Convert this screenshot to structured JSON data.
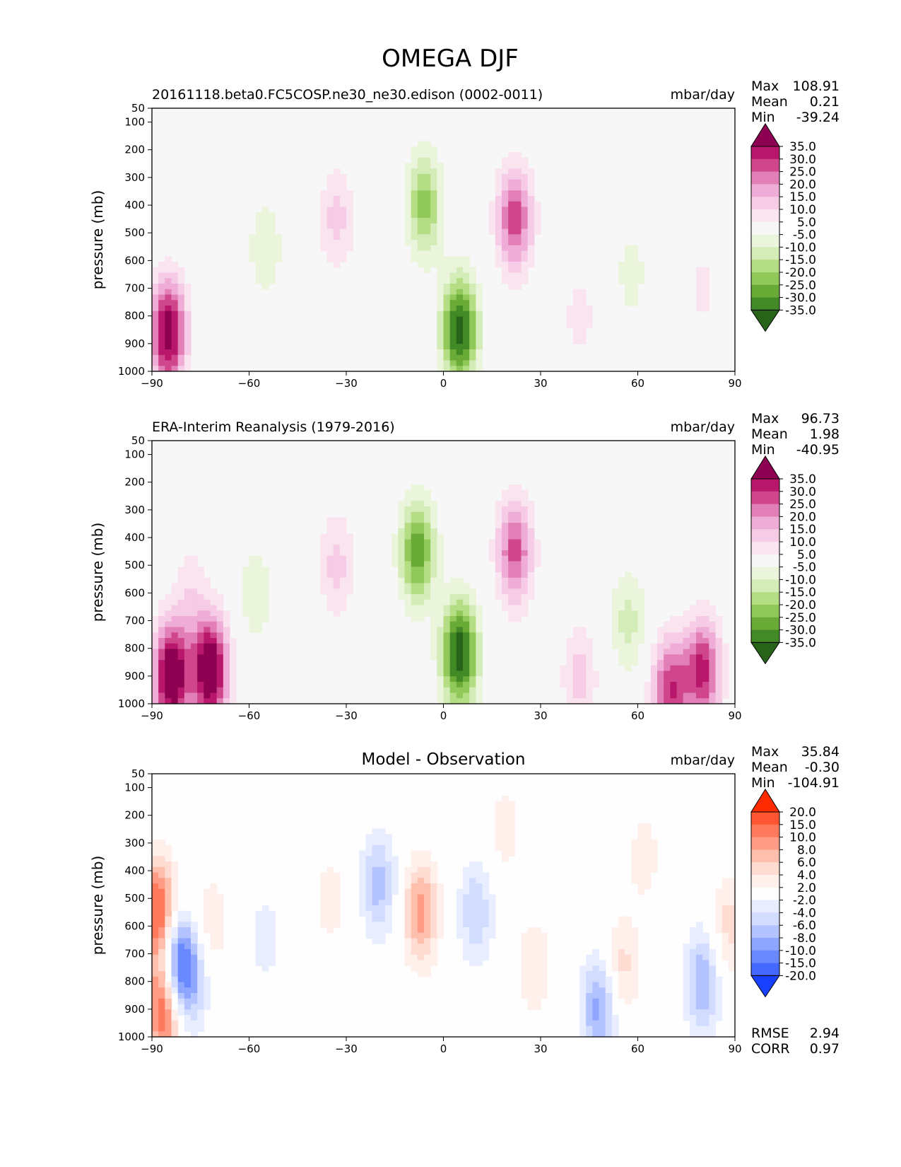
{
  "figure": {
    "title": "OMEGA DJF"
  },
  "chart_data": [
    {
      "type": "heatmap",
      "panel": "test",
      "title_left": "20161118.beta0.FC5COSP.ne30_ne30.edison (0002-0011)",
      "title_center": "",
      "units": "mbar/day",
      "ylabel": "pressure (mb)",
      "xlabel": "",
      "xlim": [
        -90,
        90
      ],
      "ylim": [
        1000,
        50
      ],
      "xticks": [
        "−90",
        "−60",
        "−30",
        "0",
        "30",
        "60",
        "90"
      ],
      "xtick_values": [
        -90,
        -60,
        -30,
        0,
        30,
        60,
        90
      ],
      "yticks": [
        "50",
        "100",
        "200",
        "300",
        "400",
        "500",
        "600",
        "700",
        "800",
        "900",
        "1000"
      ],
      "ytick_values": [
        50,
        100,
        200,
        300,
        400,
        500,
        600,
        700,
        800,
        900,
        1000
      ],
      "stats": [
        {
          "label": "Max",
          "value": "108.91"
        },
        {
          "label": "Mean",
          "value": "0.21"
        },
        {
          "label": "Min",
          "value": "-39.24"
        }
      ],
      "colorbar": {
        "labels": [
          "35.0",
          "30.0",
          "25.0",
          "20.0",
          "15.0",
          "10.0",
          "5.0",
          "-5.0",
          "-10.0",
          "-15.0",
          "-20.0",
          "-25.0",
          "-30.0",
          "-35.0"
        ],
        "colors": [
          "#8e0152",
          "#b8176b",
          "#d0468c",
          "#e27fb7",
          "#efacd6",
          "#f6cbe5",
          "#fae4ef",
          "#f7f7f7",
          "#ebf5dc",
          "#d4ecb7",
          "#b4dd84",
          "#90c95a",
          "#6aaa37",
          "#418a26",
          "#276419"
        ]
      },
      "field_features": [
        {
          "lat": -85,
          "p": 860,
          "value": 40
        },
        {
          "lat": -33,
          "p": 450,
          "value": 12
        },
        {
          "lat": -55,
          "p": 550,
          "value": -9
        },
        {
          "lat": -6,
          "p": 400,
          "value": -22
        },
        {
          "lat": 5,
          "p": 850,
          "value": -38
        },
        {
          "lat": 22,
          "p": 450,
          "value": 28
        },
        {
          "lat": 58,
          "p": 650,
          "value": -7
        },
        {
          "lat": 80,
          "p": 700,
          "value": 6
        },
        {
          "lat": 42,
          "p": 800,
          "value": 7
        }
      ]
    },
    {
      "type": "heatmap",
      "panel": "reference",
      "title_left": "ERA-Interim Reanalysis (1979-2016)",
      "title_center": "",
      "units": "mbar/day",
      "ylabel": "pressure (mb)",
      "xlabel": "",
      "xlim": [
        -90,
        90
      ],
      "ylim": [
        1000,
        50
      ],
      "xticks": [
        "−90",
        "−60",
        "−30",
        "0",
        "30",
        "60",
        "90"
      ],
      "xtick_values": [
        -90,
        -60,
        -30,
        0,
        30,
        60,
        90
      ],
      "yticks": [
        "50",
        "100",
        "200",
        "300",
        "400",
        "500",
        "600",
        "700",
        "800",
        "900",
        "1000"
      ],
      "ytick_values": [
        50,
        100,
        200,
        300,
        400,
        500,
        600,
        700,
        800,
        900,
        1000
      ],
      "stats": [
        {
          "label": "Max",
          "value": "96.73"
        },
        {
          "label": "Mean",
          "value": "1.98"
        },
        {
          "label": "Min",
          "value": "-40.95"
        }
      ],
      "colorbar": {
        "labels": [
          "35.0",
          "30.0",
          "25.0",
          "20.0",
          "15.0",
          "10.0",
          "5.0",
          "-5.0",
          "-10.0",
          "-15.0",
          "-20.0",
          "-25.0",
          "-30.0",
          "-35.0"
        ],
        "colors": [
          "#8e0152",
          "#b8176b",
          "#d0468c",
          "#e27fb7",
          "#efacd6",
          "#f6cbe5",
          "#fae4ef",
          "#f7f7f7",
          "#ebf5dc",
          "#d4ecb7",
          "#b4dd84",
          "#90c95a",
          "#6aaa37",
          "#418a26",
          "#276419"
        ]
      },
      "field_features": [
        {
          "lat": -84,
          "p": 900,
          "value": 45
        },
        {
          "lat": -72,
          "p": 880,
          "value": 45
        },
        {
          "lat": -78,
          "p": 600,
          "value": 8
        },
        {
          "lat": -33,
          "p": 500,
          "value": 12
        },
        {
          "lat": -58,
          "p": 600,
          "value": -9
        },
        {
          "lat": -8,
          "p": 450,
          "value": -28
        },
        {
          "lat": 5,
          "p": 820,
          "value": -40
        },
        {
          "lat": 22,
          "p": 450,
          "value": 27
        },
        {
          "lat": 57,
          "p": 700,
          "value": -12
        },
        {
          "lat": 70,
          "p": 950,
          "value": 30
        },
        {
          "lat": 80,
          "p": 880,
          "value": 32
        },
        {
          "lat": 42,
          "p": 900,
          "value": 12
        }
      ]
    },
    {
      "type": "heatmap",
      "panel": "difference",
      "title_left": "",
      "title_center": "Model - Observation",
      "units": "mbar/day",
      "ylabel": "pressure (mb)",
      "xlabel": "",
      "xlim": [
        -90,
        90
      ],
      "ylim": [
        1000,
        50
      ],
      "xticks": [
        "−90",
        "−60",
        "−30",
        "0",
        "30",
        "60",
        "90"
      ],
      "xtick_values": [
        -90,
        -60,
        -30,
        0,
        30,
        60,
        90
      ],
      "yticks": [
        "50",
        "100",
        "200",
        "300",
        "400",
        "500",
        "600",
        "700",
        "800",
        "900",
        "1000"
      ],
      "ytick_values": [
        50,
        100,
        200,
        300,
        400,
        500,
        600,
        700,
        800,
        900,
        1000
      ],
      "stats": [
        {
          "label": "Max",
          "value": "35.84"
        },
        {
          "label": "Mean",
          "value": "-0.30"
        },
        {
          "label": "Min",
          "value": "-104.91"
        }
      ],
      "extra_stats": [
        {
          "label": "RMSE",
          "value": "2.94"
        },
        {
          "label": "CORR",
          "value": "0.97"
        }
      ],
      "colorbar": {
        "labels": [
          "20.0",
          "15.0",
          "10.0",
          "8.0",
          "6.0",
          "4.0",
          "2.0",
          "-2.0",
          "-4.0",
          "-6.0",
          "-8.0",
          "-10.0",
          "-15.0",
          "-20.0"
        ],
        "colors": [
          "#ff2b00",
          "#ff5533",
          "#ff7a5c",
          "#ff9c85",
          "#ffbfad",
          "#ffdcd2",
          "#fff0ec",
          "#fefefe",
          "#e8edff",
          "#d2dcff",
          "#b3c3ff",
          "#8ea6ff",
          "#6a88ff",
          "#4568ff",
          "#1a40ff"
        ]
      },
      "field_features": [
        {
          "lat": -88,
          "p": 550,
          "value": 14
        },
        {
          "lat": -86,
          "p": 880,
          "value": 16
        },
        {
          "lat": -83,
          "p": 750,
          "value": -14
        },
        {
          "lat": -78,
          "p": 780,
          "value": -7
        },
        {
          "lat": -72,
          "p": 600,
          "value": 4
        },
        {
          "lat": -55,
          "p": 650,
          "value": -3
        },
        {
          "lat": -35,
          "p": 500,
          "value": 3
        },
        {
          "lat": -20,
          "p": 450,
          "value": -7
        },
        {
          "lat": -7,
          "p": 550,
          "value": 9
        },
        {
          "lat": 10,
          "p": 550,
          "value": -6
        },
        {
          "lat": 19,
          "p": 250,
          "value": 3
        },
        {
          "lat": 48,
          "p": 900,
          "value": -9
        },
        {
          "lat": 55,
          "p": 750,
          "value": 5
        },
        {
          "lat": 62,
          "p": 350,
          "value": 3
        },
        {
          "lat": 80,
          "p": 800,
          "value": -8
        },
        {
          "lat": 88,
          "p": 600,
          "value": 5
        },
        {
          "lat": 28,
          "p": 750,
          "value": 4
        }
      ]
    }
  ]
}
